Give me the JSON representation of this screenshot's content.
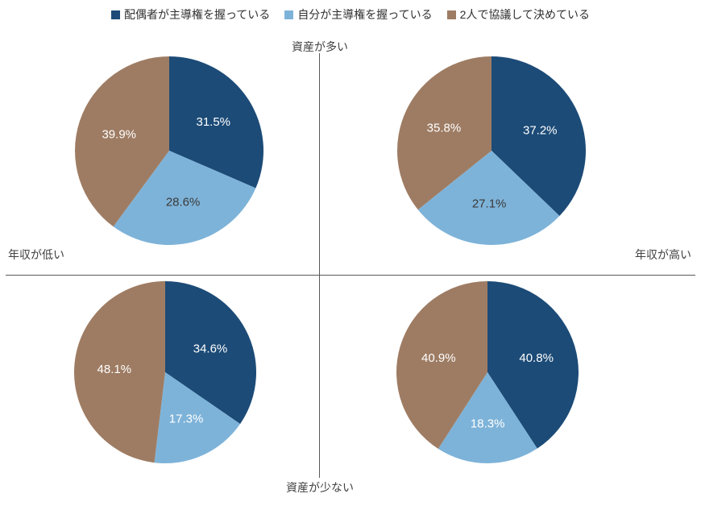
{
  "axes": {
    "top": "資産が多い",
    "bottom": "資産が少ない",
    "left": "年収が低い",
    "right": "年収が高い"
  },
  "chart_data": {
    "type": "pie",
    "title": "",
    "legend_position": "top",
    "series_names": [
      "配偶者が主導権を握っている",
      "自分が主導権を握っている",
      "2人で協議して決めている"
    ],
    "colors": [
      "#1c4b77",
      "#7eb3d9",
      "#9e7c63"
    ],
    "pies": [
      {
        "id": "top-left",
        "axis_context": "資産が多い × 年収が低い",
        "values": [
          31.5,
          28.6,
          39.9
        ],
        "labels": [
          "31.5%",
          "28.6%",
          "39.9%"
        ],
        "label_colors": [
          "#ffffff",
          "#3a3a3a",
          "#ffffff"
        ]
      },
      {
        "id": "top-right",
        "axis_context": "資産が多い × 年収が高い",
        "values": [
          37.2,
          27.1,
          35.8
        ],
        "labels": [
          "37.2%",
          "27.1%",
          "35.8%"
        ],
        "label_colors": [
          "#ffffff",
          "#3a3a3a",
          "#ffffff"
        ]
      },
      {
        "id": "bottom-left",
        "axis_context": "資産が少ない × 年収が低い",
        "values": [
          34.6,
          17.3,
          48.1
        ],
        "labels": [
          "34.6%",
          "17.3%",
          "48.1%"
        ],
        "label_colors": [
          "#ffffff",
          "#ffffff",
          "#ffffff"
        ]
      },
      {
        "id": "bottom-right",
        "axis_context": "資産が少ない × 年収が高い",
        "values": [
          40.8,
          18.3,
          40.9
        ],
        "labels": [
          "40.8%",
          "18.3%",
          "40.9%"
        ],
        "label_colors": [
          "#ffffff",
          "#ffffff",
          "#ffffff"
        ]
      }
    ]
  }
}
